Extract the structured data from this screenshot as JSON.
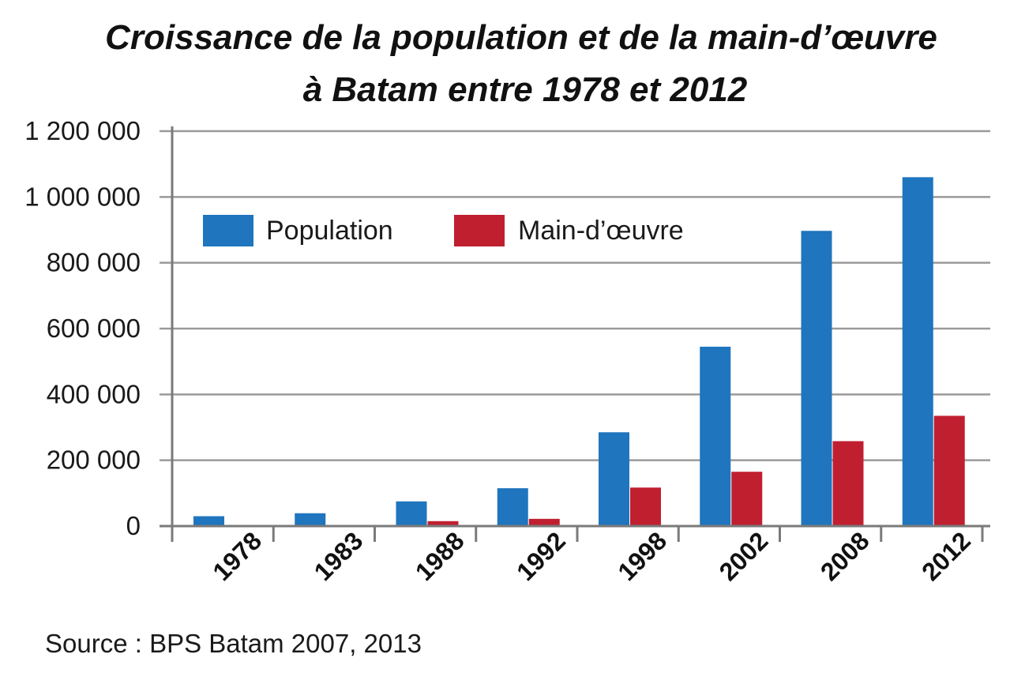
{
  "title_line1": "Croissance de la population et de la main-d’œuvre",
  "title_line2": "à Batam entre 1978 et 2012",
  "source": "Source : BPS Batam 2007, 2013",
  "colors": {
    "population": "#1f75be",
    "main_oeuvre": "#c01f30"
  },
  "chart_data": {
    "type": "bar",
    "categories": [
      "1978",
      "1983",
      "1988",
      "1992",
      "1998",
      "2002",
      "2008",
      "2012"
    ],
    "series": [
      {
        "name": "Population",
        "values": [
          30000,
          39000,
          75000,
          115000,
          285000,
          545000,
          897000,
          1060000
        ]
      },
      {
        "name": "Main-d’œuvre",
        "values": [
          0,
          0,
          15000,
          22000,
          117000,
          165000,
          258000,
          335000
        ]
      }
    ],
    "ylim": [
      0,
      1200000
    ],
    "yticks": [
      0,
      200000,
      400000,
      600000,
      800000,
      1000000,
      1200000
    ],
    "ytick_labels": [
      "0",
      "200 000",
      "400 000",
      "600 000",
      "800 000",
      "1 000 000",
      "1 200 000"
    ],
    "grid": true,
    "legend_position": "top-left"
  }
}
